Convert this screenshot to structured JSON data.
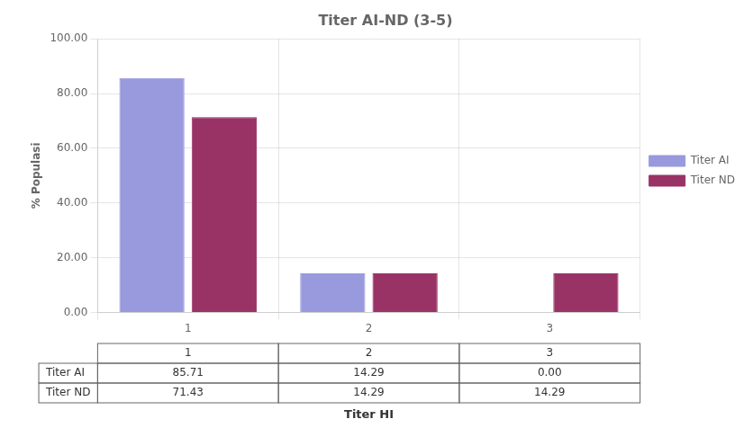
{
  "chart_data": {
    "type": "bar",
    "title": "Titer AI-ND (3-5)",
    "xlabel": "Titer HI",
    "ylabel": "% Populasi",
    "categories": [
      "1",
      "2",
      "3"
    ],
    "series": [
      {
        "name": "Titer AI",
        "color": "#9999dd",
        "values": [
          85.71,
          14.29,
          0.0
        ],
        "value_labels": [
          "85.71",
          "14.29",
          "0.00"
        ]
      },
      {
        "name": "Titer ND",
        "color": "#993366",
        "values": [
          71.43,
          14.29,
          14.29
        ],
        "value_labels": [
          "71.43",
          "14.29",
          "14.29"
        ]
      }
    ],
    "ylim": [
      0,
      100
    ],
    "yticks": [
      {
        "value": 0,
        "label": "0.00"
      },
      {
        "value": 20,
        "label": "20.00"
      },
      {
        "value": 40,
        "label": "40.00"
      },
      {
        "value": 60,
        "label": "60.00"
      },
      {
        "value": 80,
        "label": "80.00"
      },
      {
        "value": 100,
        "label": "100.00"
      }
    ],
    "grid": true,
    "legend": "right"
  }
}
